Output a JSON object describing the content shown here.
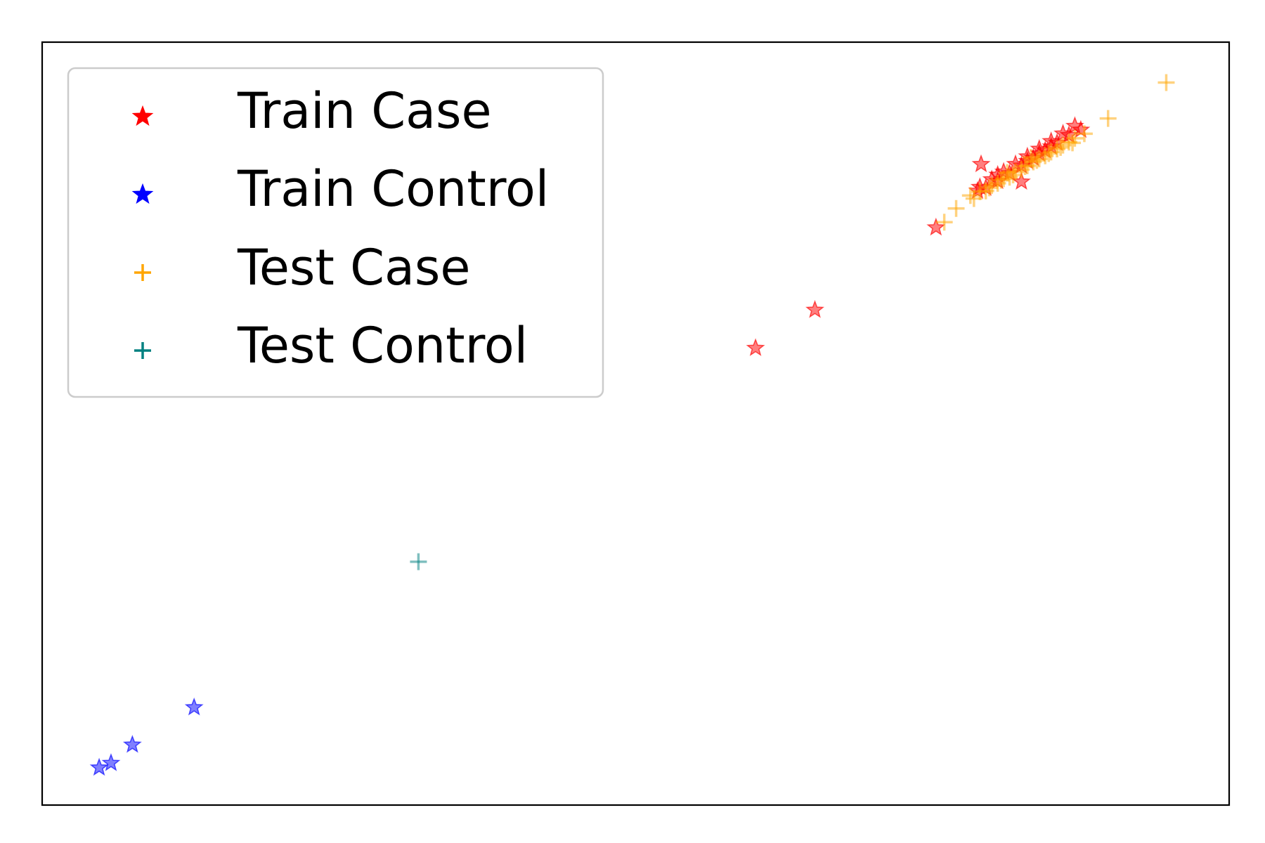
{
  "chart_data": {
    "type": "scatter",
    "title": "",
    "xlabel": "",
    "ylabel": "",
    "ticks_visible": false,
    "grid": false,
    "legend_position": "upper-left",
    "xlim": [
      0,
      100
    ],
    "ylim": [
      0,
      100
    ],
    "series": [
      {
        "name": "Train Case",
        "marker": "star",
        "color": "#ff0000",
        "points": [
          [
            60.1,
            59.9
          ],
          [
            65.1,
            64.9
          ],
          [
            75.3,
            75.7
          ],
          [
            79.1,
            84.0
          ],
          [
            82.5,
            81.7
          ],
          [
            79.0,
            81.0
          ],
          [
            80.0,
            82.0
          ],
          [
            81.0,
            83.0
          ],
          [
            82.0,
            84.0
          ],
          [
            83.0,
            85.0
          ],
          [
            84.0,
            86.0
          ],
          [
            85.0,
            87.0
          ],
          [
            86.0,
            88.0
          ],
          [
            87.0,
            89.0
          ],
          [
            80.5,
            81.8
          ],
          [
            81.5,
            82.8
          ],
          [
            82.5,
            83.8
          ],
          [
            83.5,
            84.8
          ],
          [
            84.5,
            85.8
          ],
          [
            85.5,
            86.8
          ],
          [
            86.5,
            87.8
          ],
          [
            79.5,
            80.9
          ],
          [
            80.5,
            82.6
          ],
          [
            83.0,
            84.4
          ],
          [
            85.0,
            86.3
          ],
          [
            87.5,
            88.5
          ],
          [
            78.8,
            80.5
          ],
          [
            84.0,
            85.4
          ]
        ]
      },
      {
        "name": "Train Control",
        "marker": "star",
        "color": "#0000ff",
        "points": [
          [
            4.8,
            4.9
          ],
          [
            5.8,
            5.5
          ],
          [
            7.6,
            7.9
          ],
          [
            12.8,
            12.8
          ]
        ]
      },
      {
        "name": "Test Case",
        "marker": "plus",
        "color": "#ffa500",
        "points": [
          [
            94.7,
            94.7
          ],
          [
            89.8,
            90.0
          ],
          [
            77.0,
            78.2
          ],
          [
            76.0,
            76.4
          ],
          [
            78.5,
            79.5
          ],
          [
            79.5,
            80.5
          ],
          [
            80.5,
            81.5
          ],
          [
            81.5,
            82.3
          ],
          [
            82.5,
            83.3
          ],
          [
            83.5,
            84.3
          ],
          [
            84.5,
            85.1
          ],
          [
            85.5,
            86.0
          ],
          [
            86.5,
            86.9
          ],
          [
            79.0,
            80.4
          ],
          [
            80.0,
            81.2
          ],
          [
            81.0,
            82.1
          ],
          [
            82.0,
            83.0
          ],
          [
            83.0,
            83.8
          ],
          [
            84.0,
            84.7
          ],
          [
            85.0,
            85.6
          ],
          [
            86.0,
            86.5
          ],
          [
            87.0,
            87.4
          ],
          [
            87.8,
            88.0
          ],
          [
            79.8,
            80.9
          ],
          [
            81.8,
            82.6
          ],
          [
            83.8,
            84.5
          ],
          [
            85.8,
            86.2
          ],
          [
            78.2,
            79.9
          ],
          [
            80.8,
            81.9
          ],
          [
            82.8,
            83.7
          ],
          [
            84.8,
            85.4
          ],
          [
            86.8,
            86.8
          ],
          [
            83.3,
            84.9
          ],
          [
            81.3,
            82.9
          ]
        ]
      },
      {
        "name": "Test Control",
        "marker": "plus",
        "color": "#008080",
        "points": [
          [
            31.7,
            31.9
          ]
        ]
      }
    ]
  }
}
